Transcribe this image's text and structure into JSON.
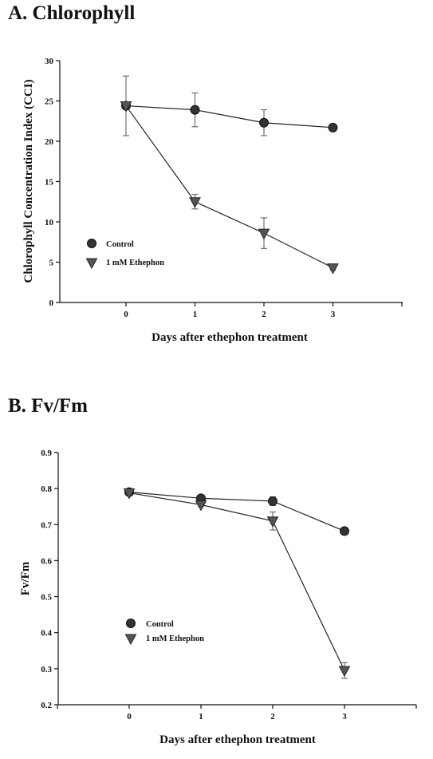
{
  "chart_data": [
    {
      "type": "line",
      "title": "A. Chlorophyll",
      "xlabel": "Days after ethephon treatment",
      "ylabel": "Chlorophyll Concentration Index (CCI)",
      "xlim": [
        -1,
        4
      ],
      "ylim": [
        0,
        30
      ],
      "x_ticks": [
        0,
        1,
        2,
        3
      ],
      "y_ticks": [
        0,
        5,
        10,
        15,
        20,
        25,
        30
      ],
      "grid": false,
      "legend_position": "lower-left",
      "series": [
        {
          "name": "Control",
          "marker": "circle",
          "color": "#333333",
          "x": [
            0,
            1,
            2,
            3
          ],
          "y": [
            24.4,
            23.9,
            22.3,
            21.7
          ],
          "error": [
            0.4,
            2.1,
            1.6,
            0.3
          ]
        },
        {
          "name": "1 mM Ethephon",
          "marker": "triangle-down",
          "color": "#555555",
          "x": [
            0,
            1,
            2,
            3
          ],
          "y": [
            24.4,
            12.5,
            8.6,
            4.3
          ],
          "error": [
            3.7,
            0.9,
            1.9,
            0.3
          ]
        }
      ]
    },
    {
      "type": "line",
      "title": "B. Fv/Fm",
      "xlabel": "Days after ethephon treatment",
      "ylabel": "Fv/Fm",
      "xlim": [
        -1,
        4
      ],
      "ylim": [
        0.2,
        0.9
      ],
      "x_ticks": [
        0,
        1,
        2,
        3
      ],
      "y_ticks": [
        0.2,
        0.3,
        0.4,
        0.5,
        0.6,
        0.7,
        0.8,
        0.9
      ],
      "grid": false,
      "legend_position": "lower-left",
      "series": [
        {
          "name": "Control",
          "marker": "circle",
          "color": "#333333",
          "x": [
            0,
            1,
            2,
            3
          ],
          "y": [
            0.79,
            0.773,
            0.765,
            0.682
          ],
          "error": [
            0.004,
            0.004,
            0.012,
            0.004
          ]
        },
        {
          "name": "1 mM Ethephon",
          "marker": "triangle-down",
          "color": "#555555",
          "x": [
            0,
            1,
            2,
            3
          ],
          "y": [
            0.788,
            0.755,
            0.71,
            0.295
          ],
          "error": [
            0.005,
            0.004,
            0.025,
            0.022
          ]
        }
      ]
    }
  ]
}
